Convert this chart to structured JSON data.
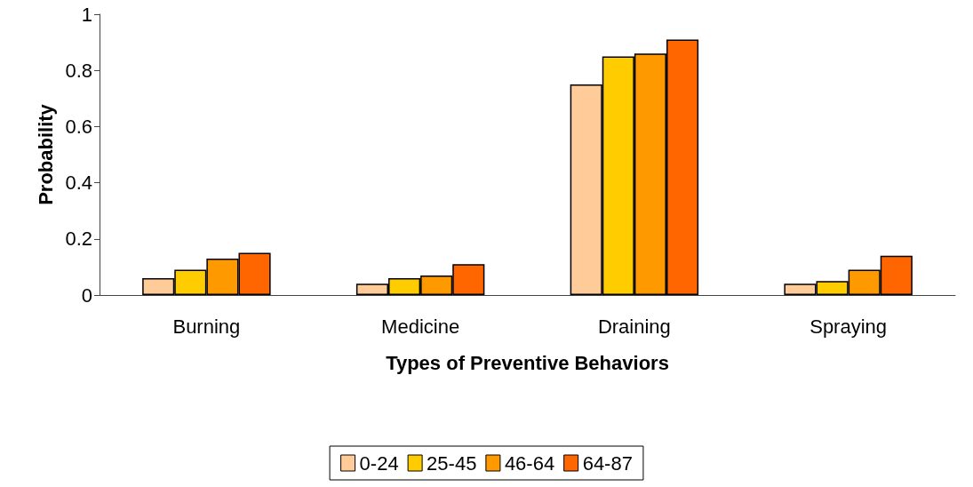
{
  "chart_data": {
    "type": "bar",
    "xlabel": "Types of Preventive Behaviors",
    "ylabel": "Probability",
    "categories": [
      "Burning",
      "Medicine",
      "Draining",
      "Spraying"
    ],
    "series": [
      {
        "name": "0-24",
        "color": "#ffcc99",
        "values": [
          0.06,
          0.04,
          0.75,
          0.04
        ]
      },
      {
        "name": "25-45",
        "color": "#ffcc00",
        "values": [
          0.09,
          0.06,
          0.85,
          0.05
        ]
      },
      {
        "name": "46-64",
        "color": "#ff9900",
        "values": [
          0.13,
          0.07,
          0.86,
          0.09
        ]
      },
      {
        "name": "64-87",
        "color": "#ff6600",
        "values": [
          0.15,
          0.11,
          0.91,
          0.14
        ]
      }
    ],
    "ylim": [
      0,
      1
    ],
    "yticks": [
      0,
      0.2,
      0.4,
      0.6,
      0.8,
      1
    ],
    "grid": false,
    "legend": "bottom"
  }
}
